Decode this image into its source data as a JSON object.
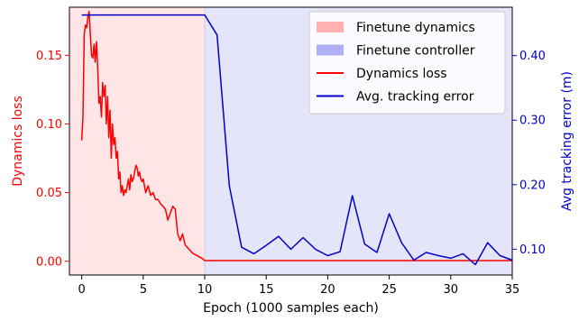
{
  "chart_data": {
    "type": "line",
    "xlabel": "Epoch (1000 samples each)",
    "ylabel_left": "Dynamics loss",
    "ylabel_right": "Avg tracking error (m)",
    "xlim": [
      -1,
      35
    ],
    "ylim_left": [
      -0.01,
      0.185
    ],
    "ylim_right": [
      0.06,
      0.475
    ],
    "x_ticks": [
      0,
      5,
      10,
      15,
      20,
      25,
      30,
      35
    ],
    "y_left_ticks": [
      0.0,
      0.05,
      0.1,
      0.15
    ],
    "y_left_tick_labels": [
      "0.00",
      "0.05",
      "0.10",
      "0.15"
    ],
    "y_right_ticks": [
      0.1,
      0.2,
      0.3,
      0.4
    ],
    "y_right_tick_labels": [
      "0.10",
      "0.20",
      "0.30",
      "0.40"
    ],
    "colors": {
      "dynamics": "#ff0000",
      "tracking": "#0000cc",
      "finetune_dynamics_fill": "#ffe5e5",
      "finetune_controller_fill": "#e5e5fa",
      "left_axis_label": "#ff0000",
      "right_axis_label": "#0000cc"
    },
    "regions": [
      {
        "name": "Finetune dynamics",
        "x_start": -1,
        "x_end": 10,
        "color": "#ffb0b0"
      },
      {
        "name": "Finetune controller",
        "x_start": 10,
        "x_end": 35,
        "color": "#b0b0f5"
      }
    ],
    "series": [
      {
        "name": "Dynamics loss",
        "axis": "left",
        "color": "#ff0000",
        "x": [
          0.0,
          0.1,
          0.2,
          0.3,
          0.4,
          0.5,
          0.6,
          0.7,
          0.8,
          0.9,
          1.0,
          1.1,
          1.2,
          1.3,
          1.4,
          1.5,
          1.6,
          1.7,
          1.8,
          1.9,
          2.0,
          2.1,
          2.2,
          2.3,
          2.4,
          2.5,
          2.6,
          2.7,
          2.8,
          2.9,
          3.0,
          3.1,
          3.2,
          3.3,
          3.4,
          3.5,
          3.6,
          3.7,
          3.8,
          3.9,
          4.0,
          4.1,
          4.2,
          4.3,
          4.4,
          4.5,
          4.6,
          4.7,
          4.8,
          4.9,
          5.0,
          5.2,
          5.4,
          5.6,
          5.8,
          6.0,
          6.2,
          6.4,
          6.6,
          6.8,
          7.0,
          7.2,
          7.4,
          7.6,
          7.8,
          8.0,
          8.2,
          8.4,
          8.6,
          8.8,
          9.0,
          9.2,
          9.4,
          9.6,
          9.8,
          10.0,
          12.0,
          15.0,
          20.0,
          25.0,
          30.0,
          35.0
        ],
        "y": [
          0.088,
          0.105,
          0.165,
          0.172,
          0.17,
          0.178,
          0.182,
          0.165,
          0.15,
          0.148,
          0.158,
          0.145,
          0.16,
          0.14,
          0.115,
          0.12,
          0.105,
          0.13,
          0.12,
          0.128,
          0.1,
          0.12,
          0.09,
          0.11,
          0.075,
          0.1,
          0.085,
          0.09,
          0.075,
          0.08,
          0.06,
          0.065,
          0.05,
          0.055,
          0.048,
          0.052,
          0.05,
          0.055,
          0.06,
          0.052,
          0.063,
          0.058,
          0.06,
          0.065,
          0.07,
          0.068,
          0.062,
          0.065,
          0.06,
          0.058,
          0.06,
          0.05,
          0.055,
          0.048,
          0.05,
          0.045,
          0.045,
          0.042,
          0.04,
          0.038,
          0.03,
          0.035,
          0.04,
          0.038,
          0.02,
          0.015,
          0.02,
          0.012,
          0.01,
          0.008,
          0.006,
          0.005,
          0.004,
          0.003,
          0.002,
          0.0005,
          0.0005,
          0.0005,
          0.0005,
          0.0005,
          0.0005,
          0.0005
        ]
      },
      {
        "name": "Avg. tracking error",
        "axis": "right",
        "color": "#0000cc",
        "x": [
          0,
          10,
          11,
          12,
          13,
          14,
          15,
          16,
          17,
          18,
          19,
          20,
          21,
          22,
          23,
          24,
          25,
          26,
          27,
          28,
          29,
          30,
          31,
          32,
          33,
          34,
          35
        ],
        "y": [
          0.463,
          0.463,
          0.432,
          0.198,
          0.103,
          0.093,
          0.106,
          0.12,
          0.1,
          0.118,
          0.1,
          0.09,
          0.096,
          0.183,
          0.108,
          0.095,
          0.155,
          0.11,
          0.083,
          0.095,
          0.09,
          0.086,
          0.093,
          0.076,
          0.11,
          0.09,
          0.083
        ]
      }
    ],
    "legend": {
      "placement": "top-right",
      "entries": [
        {
          "label": "Finetune dynamics",
          "kind": "patch",
          "color": "#ffb0b0"
        },
        {
          "label": "Finetune controller",
          "kind": "patch",
          "color": "#b0b0f5"
        },
        {
          "label": "Dynamics loss",
          "kind": "line",
          "color": "#ff0000"
        },
        {
          "label": "Avg. tracking error",
          "kind": "line",
          "color": "#0000cc"
        }
      ]
    },
    "grid": false
  }
}
